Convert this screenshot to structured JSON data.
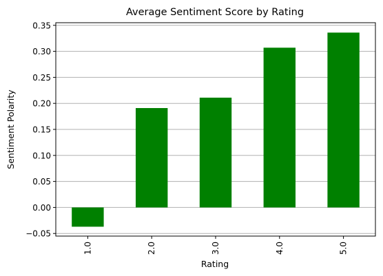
{
  "chart_data": {
    "type": "bar",
    "title": "Average Sentiment Score by Rating",
    "xlabel": "Rating",
    "ylabel": "Sentiment Polarity",
    "categories": [
      "1.0",
      "2.0",
      "3.0",
      "4.0",
      "5.0"
    ],
    "values": [
      -0.037,
      0.191,
      0.211,
      0.307,
      0.336
    ],
    "ylim": [
      -0.055,
      0.355
    ],
    "yticks": [
      "−0.05",
      "0.00",
      "0.05",
      "0.10",
      "0.15",
      "0.20",
      "0.25",
      "0.30",
      "0.35"
    ],
    "ytick_values": [
      -0.05,
      0.0,
      0.05,
      0.1,
      0.15,
      0.2,
      0.25,
      0.3,
      0.35
    ],
    "grid": "y-major",
    "legend": "none",
    "bar_color": "#008000",
    "grid_color": "#b0b0b0"
  }
}
